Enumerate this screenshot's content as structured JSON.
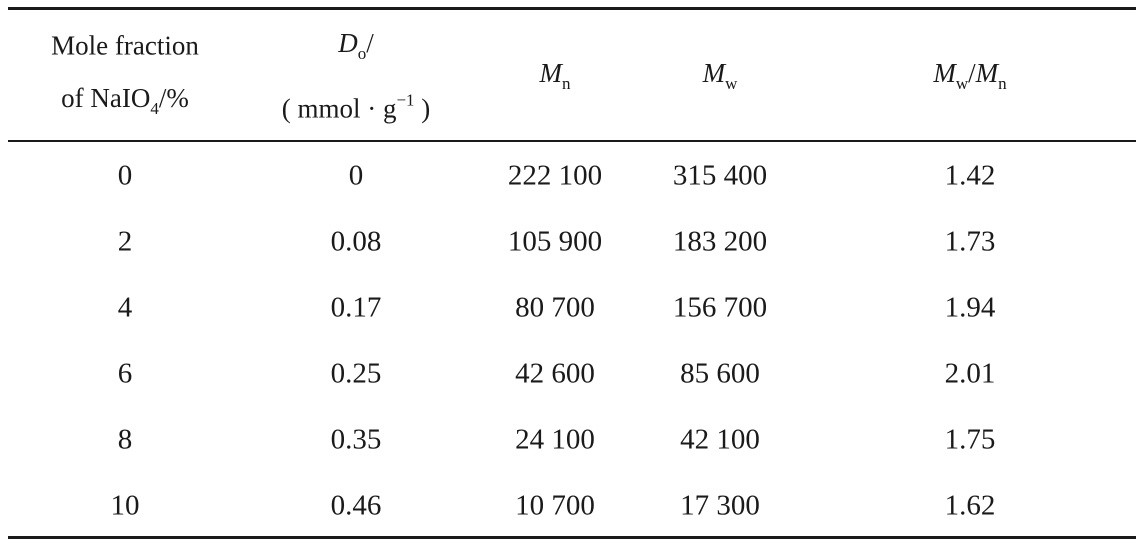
{
  "table": {
    "header": {
      "col1_line1": "Mole fraction",
      "col1_line2_pre": "of NaIO",
      "col1_line2_sub": "4",
      "col1_line2_post": "/%",
      "col2_sym": "D",
      "col2_sub": "o",
      "col2_post": "/",
      "col2_unit_pre": "( mmol · g",
      "col2_unit_sup": "−1",
      "col2_unit_post": " )",
      "col3_sym": "M",
      "col3_sub": "n",
      "col4_sym": "M",
      "col4_sub": "w",
      "col5_sym1": "M",
      "col5_sub1": "w",
      "col5_sep": "/",
      "col5_sym2": "M",
      "col5_sub2": "n"
    },
    "rows": [
      [
        "0",
        "0",
        "222 100",
        "315 400",
        "1.42"
      ],
      [
        "2",
        "0.08",
        "105 900",
        "183 200",
        "1.73"
      ],
      [
        "4",
        "0.17",
        "80 700",
        "156 700",
        "1.94"
      ],
      [
        "6",
        "0.25",
        "42 600",
        "85 600",
        "2.01"
      ],
      [
        "8",
        "0.35",
        "24 100",
        "42 100",
        "1.75"
      ],
      [
        "10",
        "0.46",
        "10 700",
        "17 300",
        "1.62"
      ]
    ]
  }
}
